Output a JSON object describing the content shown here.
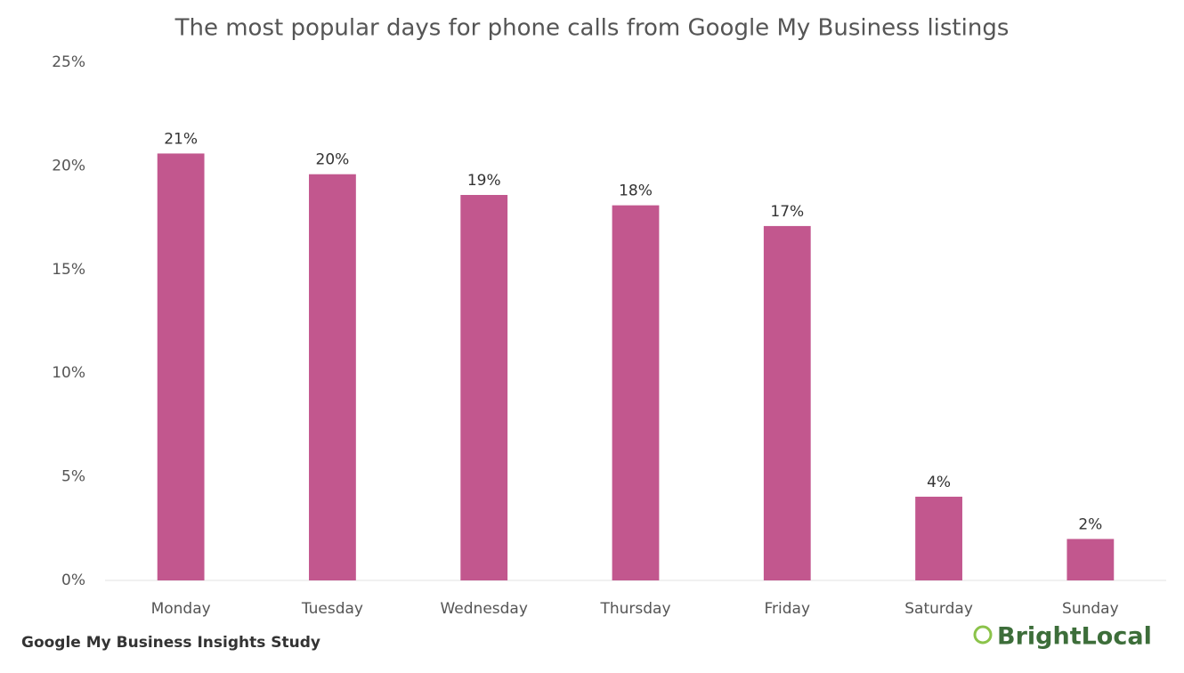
{
  "chart_data": {
    "type": "bar",
    "title": "The most popular days for phone calls from Google My Business listings",
    "categories": [
      "Monday",
      "Tuesday",
      "Wednesday",
      "Thursday",
      "Friday",
      "Saturday",
      "Sunday"
    ],
    "values": [
      20.6,
      19.6,
      18.6,
      18.1,
      17.1,
      4.04,
      2.0
    ],
    "value_labels": [
      "21%",
      "20%",
      "19%",
      "18%",
      "17%",
      "4%",
      "2%"
    ],
    "color": "#c2578e",
    "ylim": [
      0,
      25
    ],
    "yticks": [
      {
        "value": 0,
        "label": "0%"
      },
      {
        "value": 5,
        "label": "5%"
      },
      {
        "value": 10,
        "label": "10%"
      },
      {
        "value": 15,
        "label": "15%"
      },
      {
        "value": 20,
        "label": "20%"
      },
      {
        "value": 25,
        "label": "25%"
      }
    ],
    "grid": false,
    "source": "Google My Business Insights Study",
    "brand": "BrightLocal"
  }
}
